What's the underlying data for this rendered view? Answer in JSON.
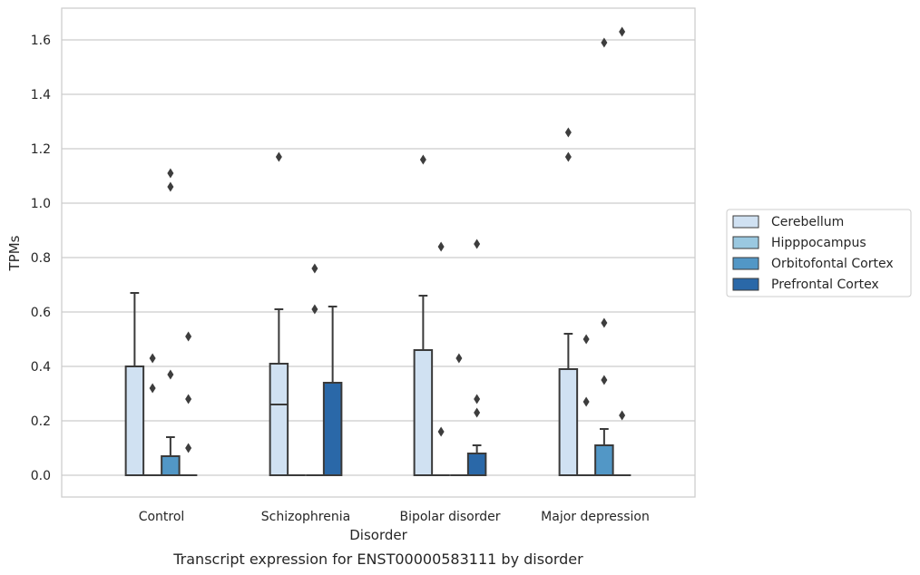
{
  "caption": "Transcript expression for ENST00000583111 by disorder",
  "chart_data": {
    "type": "box",
    "title": "",
    "xlabel": "Disorder",
    "ylabel": "TPMs",
    "ylim": [
      -0.08,
      1.71
    ],
    "yticks": [
      0.0,
      0.2,
      0.4,
      0.6,
      0.8,
      1.0,
      1.2,
      1.4,
      1.6
    ],
    "ytick_labels": [
      "0.0",
      "0.2",
      "0.4",
      "0.6",
      "0.8",
      "1.0",
      "1.2",
      "1.4",
      "1.6"
    ],
    "grid": true,
    "legend_position": "right",
    "categories": [
      "Control",
      "Schizophrenia",
      "Bipolar disorder",
      "Major depression"
    ],
    "series": [
      {
        "name": "Cerebellum",
        "color": "#d0e1f2",
        "boxes": [
          {
            "q1": 0.0,
            "median": 0.0,
            "q3": 0.4,
            "whisker_low": 0.0,
            "whisker_high": 0.67,
            "outliers": []
          },
          {
            "q1": 0.0,
            "median": 0.26,
            "q3": 0.41,
            "whisker_low": 0.0,
            "whisker_high": 0.61,
            "outliers": [
              1.17
            ]
          },
          {
            "q1": 0.0,
            "median": 0.0,
            "q3": 0.46,
            "whisker_low": 0.0,
            "whisker_high": 0.66,
            "outliers": [
              1.16
            ]
          },
          {
            "q1": 0.0,
            "median": 0.0,
            "q3": 0.39,
            "whisker_low": 0.0,
            "whisker_high": 0.52,
            "outliers": [
              1.17,
              1.26
            ]
          }
        ]
      },
      {
        "name": "Hipppocampus",
        "color": "#9ac8e0",
        "boxes": [
          {
            "q1": 0.0,
            "median": 0.0,
            "q3": 0.0,
            "whisker_low": 0.0,
            "whisker_high": 0.0,
            "outliers": [
              0.32,
              0.43
            ]
          },
          {
            "q1": 0.0,
            "median": 0.0,
            "q3": 0.0,
            "whisker_low": 0.0,
            "whisker_high": 0.0,
            "outliers": []
          },
          {
            "q1": 0.0,
            "median": 0.0,
            "q3": 0.0,
            "whisker_low": 0.0,
            "whisker_high": 0.0,
            "outliers": [
              0.16,
              0.84
            ]
          },
          {
            "q1": 0.0,
            "median": 0.0,
            "q3": 0.0,
            "whisker_low": 0.0,
            "whisker_high": 0.0,
            "outliers": [
              0.27,
              0.5
            ]
          }
        ]
      },
      {
        "name": "Orbitofontal Cortex",
        "color": "#5297c6",
        "boxes": [
          {
            "q1": 0.0,
            "median": 0.0,
            "q3": 0.07,
            "whisker_low": 0.0,
            "whisker_high": 0.14,
            "outliers": [
              0.37,
              1.06,
              1.11
            ]
          },
          {
            "q1": 0.0,
            "median": 0.0,
            "q3": 0.0,
            "whisker_low": 0.0,
            "whisker_high": 0.0,
            "outliers": [
              0.61,
              0.76
            ]
          },
          {
            "q1": 0.0,
            "median": 0.0,
            "q3": 0.0,
            "whisker_low": 0.0,
            "whisker_high": 0.0,
            "outliers": [
              0.43
            ]
          },
          {
            "q1": 0.0,
            "median": 0.0,
            "q3": 0.11,
            "whisker_low": 0.0,
            "whisker_high": 0.17,
            "outliers": [
              0.35,
              0.56,
              1.59
            ]
          }
        ]
      },
      {
        "name": "Prefrontal Cortex",
        "color": "#2a68a8",
        "boxes": [
          {
            "q1": 0.0,
            "median": 0.0,
            "q3": 0.0,
            "whisker_low": 0.0,
            "whisker_high": 0.0,
            "outliers": [
              0.1,
              0.28,
              0.51
            ]
          },
          {
            "q1": 0.0,
            "median": 0.0,
            "q3": 0.34,
            "whisker_low": 0.0,
            "whisker_high": 0.62,
            "outliers": []
          },
          {
            "q1": 0.0,
            "median": 0.0,
            "q3": 0.08,
            "whisker_low": 0.0,
            "whisker_high": 0.11,
            "outliers": [
              0.23,
              0.28,
              0.85
            ]
          },
          {
            "q1": 0.0,
            "median": 0.0,
            "q3": 0.0,
            "whisker_low": 0.0,
            "whisker_high": 0.0,
            "outliers": [
              0.22,
              1.63
            ]
          }
        ]
      }
    ]
  }
}
